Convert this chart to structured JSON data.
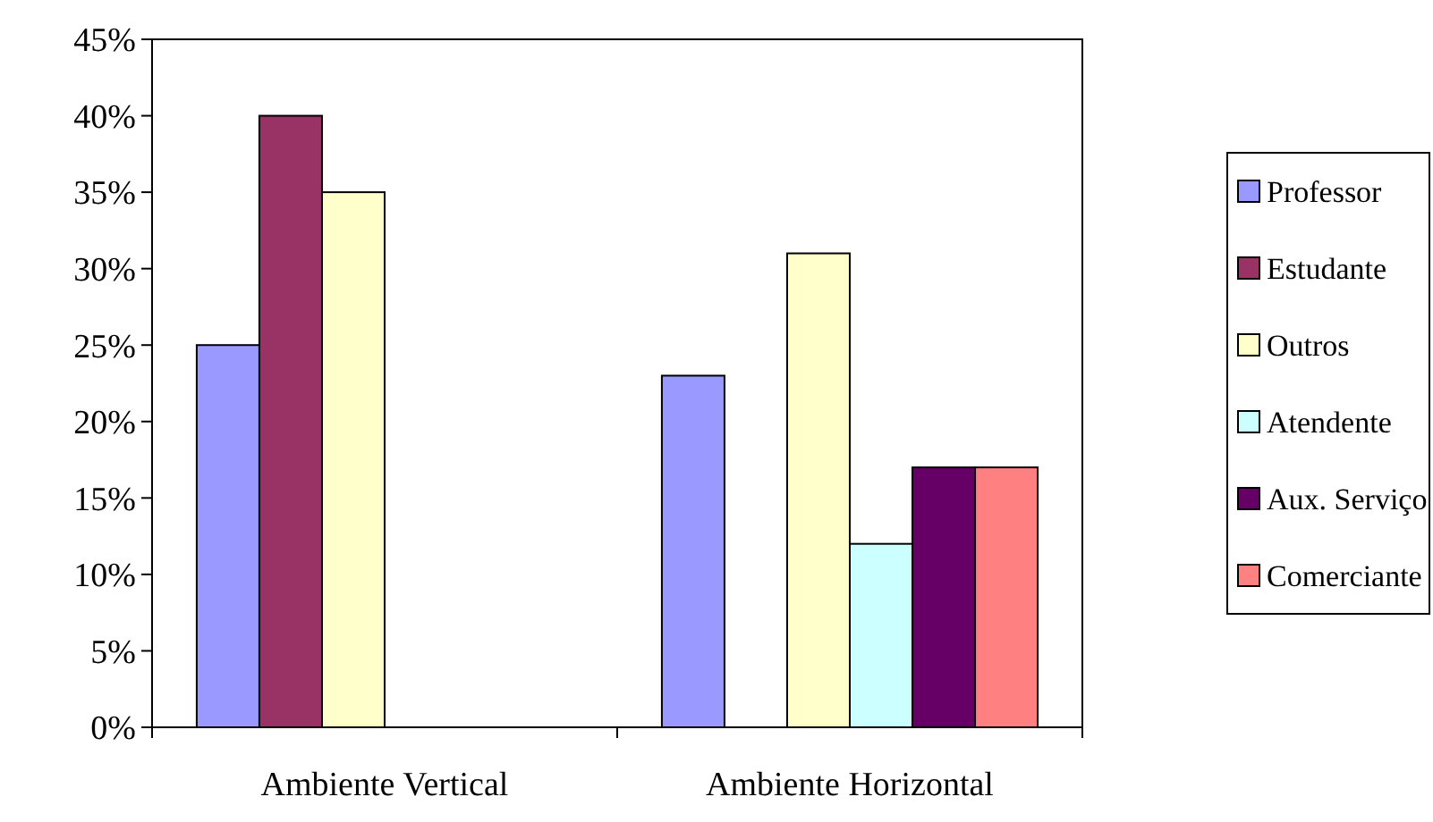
{
  "chart_data": {
    "type": "bar",
    "categories": [
      "Ambiente Vertical",
      "Ambiente Horizontal"
    ],
    "series": [
      {
        "name": "Professor",
        "color": "#9999ff",
        "values": [
          25,
          23
        ]
      },
      {
        "name": "Estudante",
        "color": "#993366",
        "values": [
          40,
          null
        ]
      },
      {
        "name": "Outros",
        "color": "#ffffcc",
        "values": [
          35,
          31
        ]
      },
      {
        "name": "Atendente",
        "color": "#ccffff",
        "values": [
          null,
          12
        ]
      },
      {
        "name": "Aux. Serviço",
        "color": "#660066",
        "values": [
          null,
          17
        ]
      },
      {
        "name": "Comerciante",
        "color": "#ff8080",
        "values": [
          null,
          17
        ]
      }
    ],
    "ylim": [
      0,
      45
    ],
    "yticks": [
      {
        "value": 0,
        "label": "0%"
      },
      {
        "value": 5,
        "label": "5%"
      },
      {
        "value": 10,
        "label": "10%"
      },
      {
        "value": 15,
        "label": "15%"
      },
      {
        "value": 20,
        "label": "20%"
      },
      {
        "value": 25,
        "label": "25%"
      },
      {
        "value": 30,
        "label": "30%"
      },
      {
        "value": 35,
        "label": "35%"
      },
      {
        "value": 40,
        "label": "40%"
      },
      {
        "value": 45,
        "label": "45%"
      }
    ],
    "grid": false,
    "legend": "right"
  }
}
